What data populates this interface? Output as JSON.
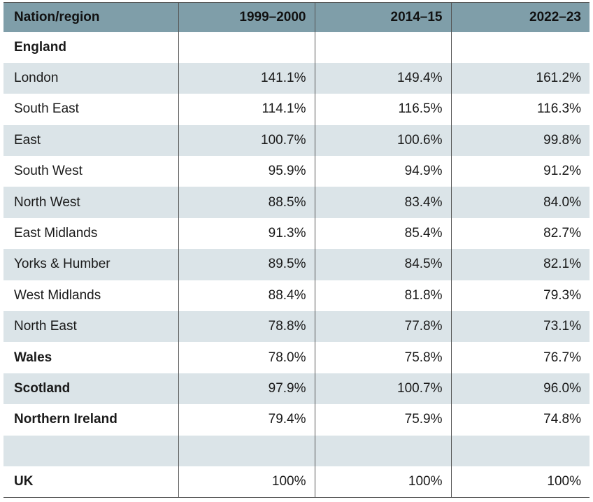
{
  "table": {
    "columns": [
      "Nation/region",
      "1999–2000",
      "2014–15",
      "2022–23"
    ],
    "rows": [
      {
        "name": "England",
        "bold": true,
        "values": [
          "",
          "",
          ""
        ]
      },
      {
        "name": "London",
        "bold": false,
        "values": [
          "141.1%",
          "149.4%",
          "161.2%"
        ]
      },
      {
        "name": "South East",
        "bold": false,
        "values": [
          "114.1%",
          "116.5%",
          "116.3%"
        ]
      },
      {
        "name": "East",
        "bold": false,
        "values": [
          "100.7%",
          "100.6%",
          "99.8%"
        ]
      },
      {
        "name": "South West",
        "bold": false,
        "values": [
          "95.9%",
          "94.9%",
          "91.2%"
        ]
      },
      {
        "name": "North West",
        "bold": false,
        "values": [
          "88.5%",
          "83.4%",
          "84.0%"
        ]
      },
      {
        "name": "East Midlands",
        "bold": false,
        "values": [
          "91.3%",
          "85.4%",
          "82.7%"
        ]
      },
      {
        "name": "Yorks & Humber",
        "bold": false,
        "values": [
          "89.5%",
          "84.5%",
          "82.1%"
        ]
      },
      {
        "name": "West Midlands",
        "bold": false,
        "values": [
          "88.4%",
          "81.8%",
          "79.3%"
        ]
      },
      {
        "name": "North East",
        "bold": false,
        "values": [
          "78.8%",
          "77.8%",
          "73.1%"
        ]
      },
      {
        "name": "Wales",
        "bold": true,
        "values": [
          "78.0%",
          "75.8%",
          "76.7%"
        ]
      },
      {
        "name": "Scotland",
        "bold": true,
        "values": [
          "97.9%",
          "100.7%",
          "96.0%"
        ]
      },
      {
        "name": "Northern Ireland",
        "bold": true,
        "values": [
          "79.4%",
          "75.9%",
          "74.8%"
        ]
      },
      {
        "name": "",
        "bold": false,
        "values": [
          "",
          "",
          ""
        ]
      },
      {
        "name": "UK",
        "bold": true,
        "values": [
          "100%",
          "100%",
          "100%"
        ]
      }
    ]
  },
  "colors": {
    "header_bg": "#7f9ea9",
    "band_bg": "#dbe4e8",
    "rule": "#555555"
  }
}
